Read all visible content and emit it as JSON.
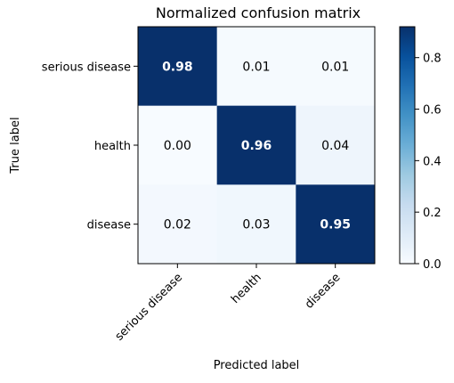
{
  "chart_data": {
    "type": "heatmap",
    "title": "Normalized confusion matrix",
    "xlabel": "Predicted label",
    "ylabel": "True label",
    "x_categories": [
      "serious disease",
      "health",
      "disease"
    ],
    "y_categories": [
      "serious disease",
      "health",
      "disease"
    ],
    "values": [
      [
        0.98,
        0.01,
        0.01
      ],
      [
        0.0,
        0.96,
        0.04
      ],
      [
        0.02,
        0.03,
        0.95
      ]
    ],
    "value_labels": [
      [
        "0.98",
        "0.01",
        "0.01"
      ],
      [
        "0.00",
        "0.96",
        "0.04"
      ],
      [
        "0.02",
        "0.03",
        "0.95"
      ]
    ],
    "colormap": "Blues",
    "colorbar_range": [
      0.0,
      0.92
    ],
    "colorbar_ticks": [
      "0.0",
      "0.2",
      "0.4",
      "0.6",
      "0.8"
    ],
    "colorbar_tick_values": [
      0.0,
      0.2,
      0.4,
      0.6,
      0.8
    ],
    "colors": {
      "low": "#f7fbff",
      "high": "#08306b",
      "text_on_dark": "#ffffff",
      "text_on_light": "#000000"
    }
  }
}
